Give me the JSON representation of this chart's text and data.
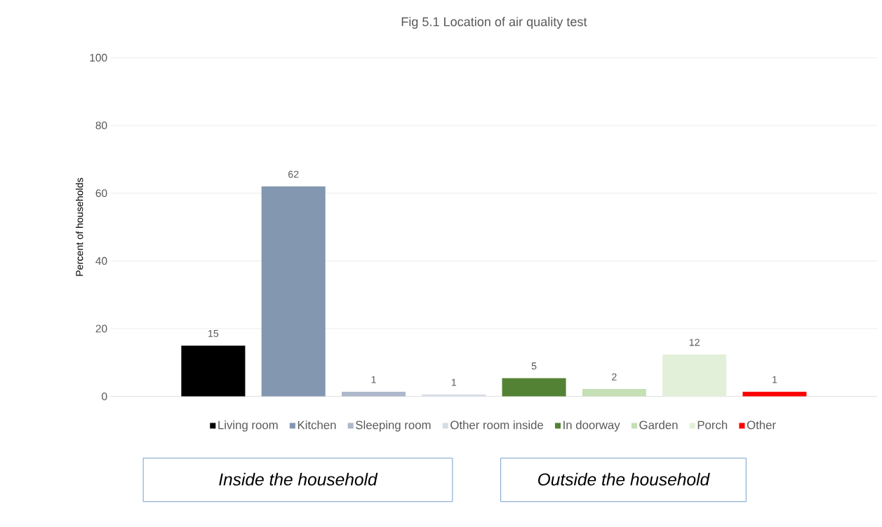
{
  "chart_data": {
    "type": "bar",
    "title": "Fig 5.1 Location of air quality test",
    "ylabel": "Percent of households",
    "categories": [
      null
    ],
    "series": [
      {
        "name": "Living room",
        "color": "#000000",
        "values": [
          15
        ],
        "value_labels": [
          "15"
        ]
      },
      {
        "name": "Kitchen",
        "color": "#8497b0",
        "values": [
          62
        ],
        "value_labels": [
          "62"
        ]
      },
      {
        "name": "Sleeping room",
        "color": "#adb9ca",
        "values": [
          1.4
        ],
        "value_labels": [
          "1"
        ]
      },
      {
        "name": "Other room inside",
        "color": "#d6dce5",
        "values": [
          0.6
        ],
        "value_labels": [
          "1"
        ]
      },
      {
        "name": "In doorway",
        "color": "#548235",
        "values": [
          5.4
        ],
        "value_labels": [
          "5"
        ]
      },
      {
        "name": "Garden",
        "color": "#c5e0b4",
        "values": [
          2.2
        ],
        "value_labels": [
          "2"
        ]
      },
      {
        "name": "Porch",
        "color": "#e2f0d9",
        "values": [
          12.4
        ],
        "value_labels": [
          "12"
        ]
      },
      {
        "name": "Other",
        "color": "#ff0000",
        "values": [
          1.4
        ],
        "value_labels": [
          "1"
        ]
      }
    ],
    "ylim": [
      0,
      100
    ],
    "yticks": [
      0,
      20,
      40,
      60,
      80,
      100
    ],
    "grid": "y",
    "legend": "bottom",
    "annotations": [
      "Inside the household",
      "Outside the household"
    ]
  }
}
